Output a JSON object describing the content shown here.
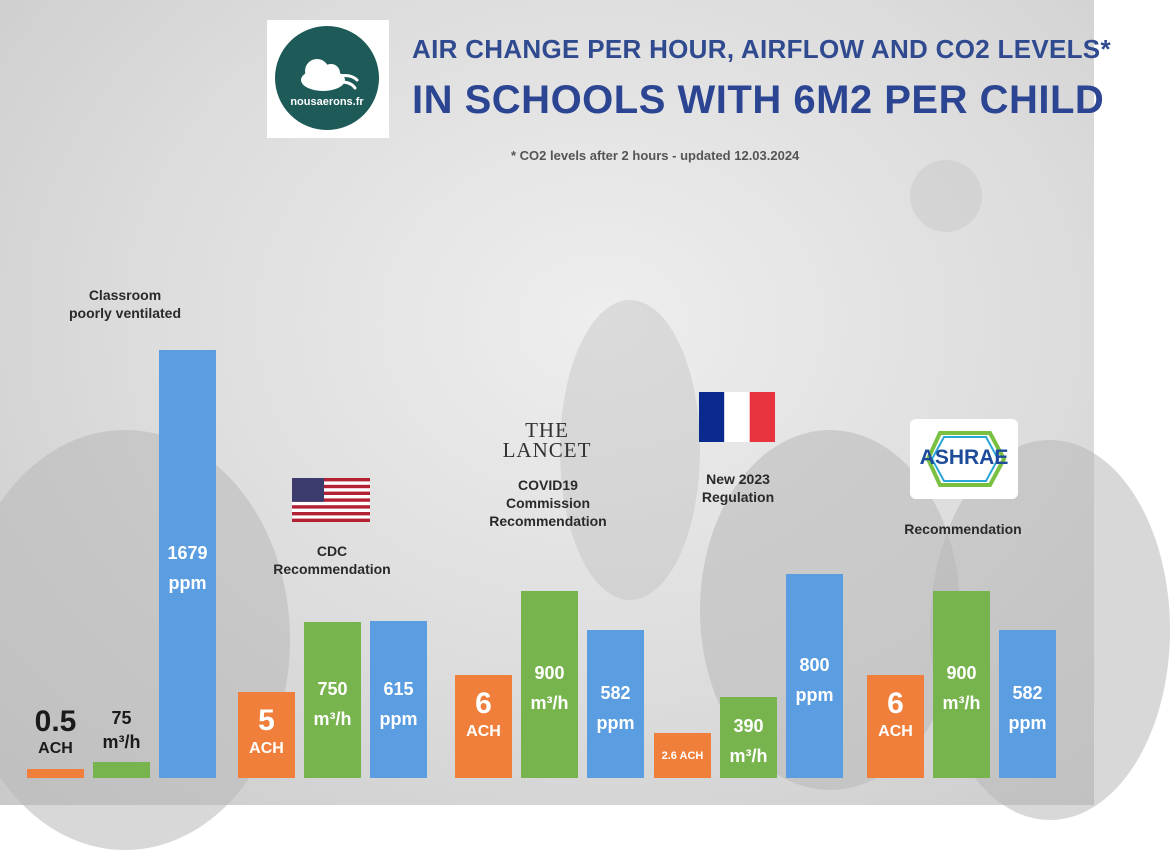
{
  "header": {
    "logo_text": "nousaerons.fr",
    "title_line1": "AIR CHANGE PER HOUR, AIRFLOW AND CO2 LEVELS*",
    "title_line2": "IN SCHOOLS WITH 6M2 PER CHILD",
    "subtitle": "* CO2 levels after 2 hours - updated 12.03.2024"
  },
  "logos": {
    "lancet": "THE\nLANCET",
    "ashrae": "ASHRAE"
  },
  "colors": {
    "ach": "#f07f3c",
    "airflow": "#78b44d",
    "co2": "#5b9de1",
    "title": "#2c4592"
  },
  "chart_data": {
    "type": "bar",
    "title": "AIR CHANGE PER HOUR, AIRFLOW AND CO2 LEVELS* IN SCHOOLS WITH 6M2 PER CHILD",
    "subtitle": "* CO2 levels after 2 hours - updated 12.03.2024",
    "groups": [
      {
        "label": "Classroom\npoorly ventilated",
        "ach": 0.5,
        "airflow": 75,
        "co2": 1679,
        "ach_label": "0.5\nACH",
        "airflow_label": "75\nm³/h",
        "co2_label": "1679\nppm"
      },
      {
        "label": "CDC\nRecommendation",
        "ach": 5,
        "airflow": 750,
        "co2": 615,
        "ach_label": "5\nACH",
        "airflow_label": "750\nm³/h",
        "co2_label": "615\nppm"
      },
      {
        "label": "COVID19\nCommission\nRecommendation",
        "ach": 6,
        "airflow": 900,
        "co2": 582,
        "ach_label": "6\nACH",
        "airflow_label": "900\nm³/h",
        "co2_label": "582\nppm"
      },
      {
        "label": "New 2023\nRegulation",
        "ach": 2.6,
        "airflow": 390,
        "co2": 800,
        "ach_label": "2.6 ACH",
        "airflow_label": "390\nm³/h",
        "co2_label": "800\nppm"
      },
      {
        "label": "Recommendation",
        "ach": 6,
        "airflow": 900,
        "co2": 582,
        "ach_label": "6\nACH",
        "airflow_label": "900\nm³/h",
        "co2_label": "582\nppm"
      }
    ]
  }
}
